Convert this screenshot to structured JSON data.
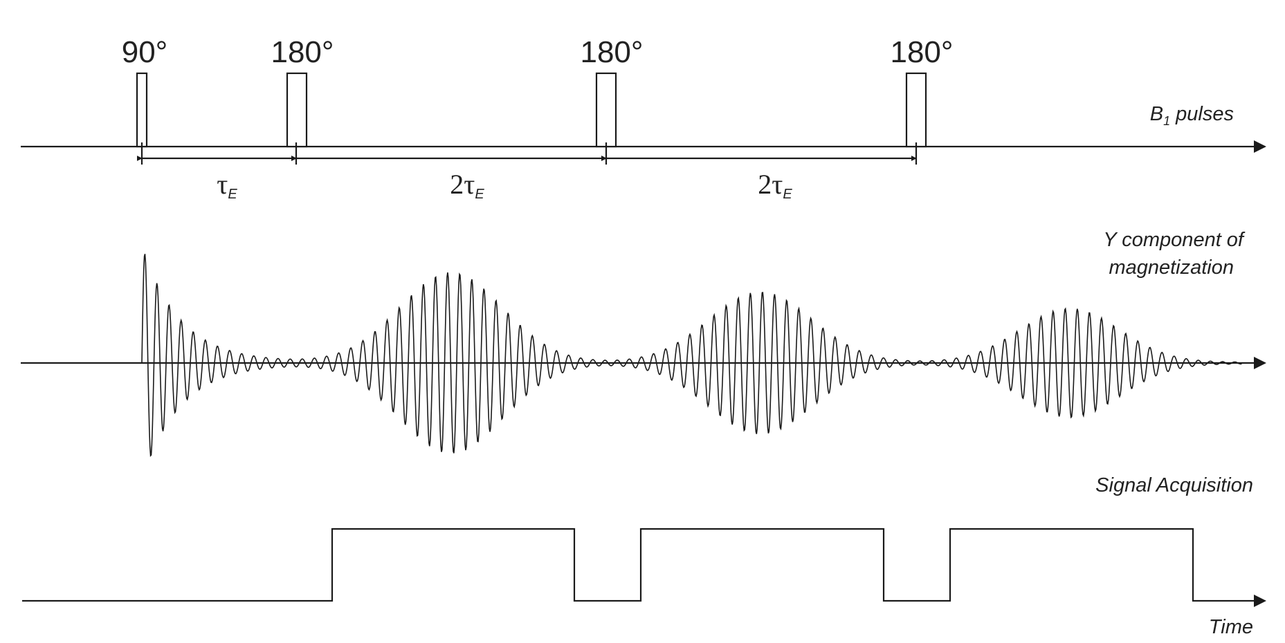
{
  "pulse_labels": [
    "90°",
    "180°",
    "180°",
    "180°"
  ],
  "intervals": [
    {
      "prefix": "",
      "symbol": "τ",
      "subscript": "E"
    },
    {
      "prefix": "2",
      "symbol": "τ",
      "subscript": "E"
    },
    {
      "prefix": "2",
      "symbol": "τ",
      "subscript": "E"
    }
  ],
  "rows": {
    "b1": {
      "label_main": "B",
      "label_sub": "1",
      "label_rest": " pulses"
    },
    "magnetization": {
      "label_line1": "Y component of",
      "label_line2": "magnetization"
    },
    "acquisition": {
      "label": "Signal Acquisition"
    },
    "time": {
      "label": "Time"
    }
  }
}
